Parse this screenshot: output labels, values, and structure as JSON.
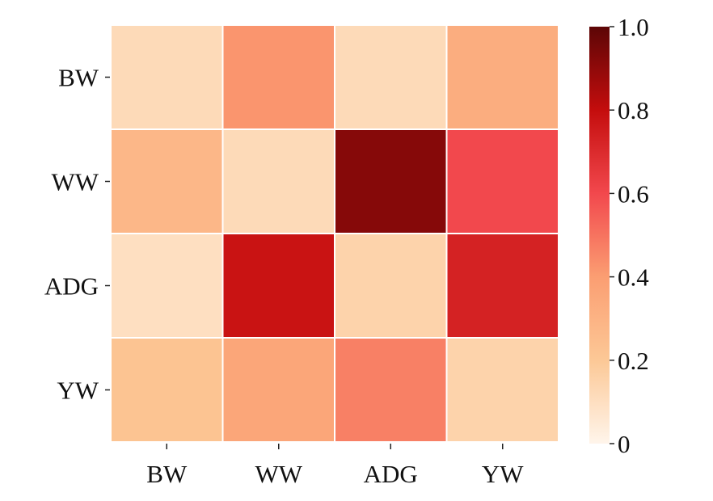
{
  "chart_data": {
    "type": "heatmap",
    "title": "",
    "xlabel": "",
    "ylabel": "",
    "x_categories": [
      "BW",
      "WW",
      "ADG",
      "YW"
    ],
    "y_categories": [
      "BW",
      "WW",
      "ADG",
      "YW"
    ],
    "values": [
      [
        0.12,
        0.42,
        0.12,
        0.33
      ],
      [
        0.28,
        0.12,
        0.92,
        0.6
      ],
      [
        0.1,
        0.78,
        0.15,
        0.73
      ],
      [
        0.22,
        0.36,
        0.47,
        0.15
      ]
    ],
    "colorbar": {
      "range": [
        0,
        1.0
      ],
      "ticks": [
        "0",
        "0.2",
        "0.4",
        "0.6",
        "0.8",
        "1.0"
      ],
      "colormap": "Reds",
      "stops": [
        "#fff5eb",
        "#fcc896",
        "#fb9e72",
        "#f2484d",
        "#c40d0d",
        "#5c0606"
      ]
    },
    "grid": false,
    "legend": "colorbar-right"
  }
}
